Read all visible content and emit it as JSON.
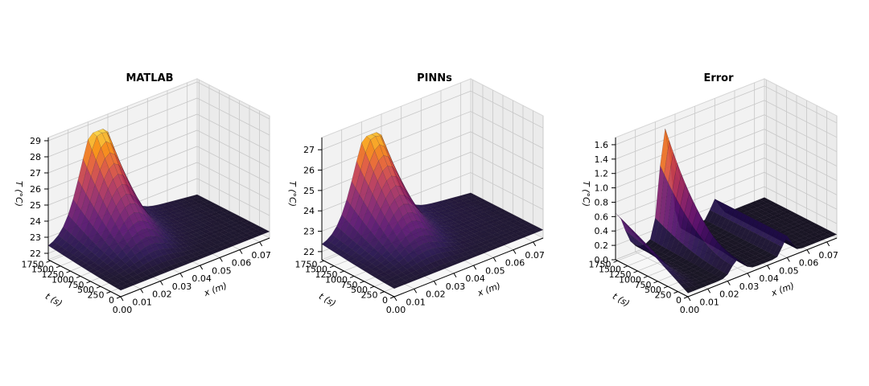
{
  "chart_data": [
    {
      "type": "surface",
      "title": "MATLAB",
      "xlabel": "x (m)",
      "ylabel": "t (s)",
      "zlabel": "T (°C)",
      "xticks": [
        "0.00",
        "0.01",
        "0.02",
        "0.03",
        "0.04",
        "0.05",
        "0.06",
        "0.07"
      ],
      "yticks": [
        "0",
        "250",
        "500",
        "750",
        "1000",
        "1250",
        "1500",
        "1750"
      ],
      "zticks": [
        "22",
        "23",
        "24",
        "25",
        "26",
        "27",
        "28",
        "29"
      ],
      "xlim": [
        0,
        0.075
      ],
      "ylim": [
        0,
        1800
      ],
      "zlim": [
        21.6,
        29.2
      ],
      "surface": {
        "baseline": 22,
        "peak": 28.4,
        "peak_x": 0.025,
        "peak_t": 1800
      },
      "colormap": "inferno",
      "grid": true
    },
    {
      "type": "surface",
      "title": "PINNs",
      "xlabel": "x (m)",
      "ylabel": "t (s)",
      "zlabel": "T (°C)",
      "xticks": [
        "0.00",
        "0.01",
        "0.02",
        "0.03",
        "0.04",
        "0.05",
        "0.06",
        "0.07"
      ],
      "yticks": [
        "0",
        "250",
        "500",
        "750",
        "1000",
        "1250",
        "1500",
        "1750"
      ],
      "zticks": [
        "22",
        "23",
        "24",
        "25",
        "26",
        "27"
      ],
      "xlim": [
        0,
        0.075
      ],
      "ylim": [
        0,
        1800
      ],
      "zlim": [
        21.6,
        27.6
      ],
      "surface": {
        "baseline": 22,
        "peak": 26.8,
        "peak_x": 0.025,
        "peak_t": 1800
      },
      "colormap": "inferno",
      "grid": true
    },
    {
      "type": "surface",
      "title": "Error",
      "xlabel": "x (m)",
      "ylabel": "t (s)",
      "zlabel": "T (°C)",
      "xticks": [
        "0.00",
        "0.01",
        "0.02",
        "0.03",
        "0.04",
        "0.05",
        "0.06",
        "0.07"
      ],
      "yticks": [
        "0",
        "250",
        "500",
        "750",
        "1000",
        "1250",
        "1500",
        "1750"
      ],
      "zticks": [
        "0.0",
        "0.2",
        "0.4",
        "0.6",
        "0.8",
        "1.0",
        "1.2",
        "1.4",
        "1.6"
      ],
      "xlim": [
        0,
        0.075
      ],
      "ylim": [
        0,
        1800
      ],
      "zlim": [
        0,
        1.7
      ],
      "surface": {
        "baseline": 0.05,
        "peak": 1.5,
        "peak_x": 0.025,
        "peak_t": 1800
      },
      "colormap": "inferno",
      "grid": true
    }
  ]
}
